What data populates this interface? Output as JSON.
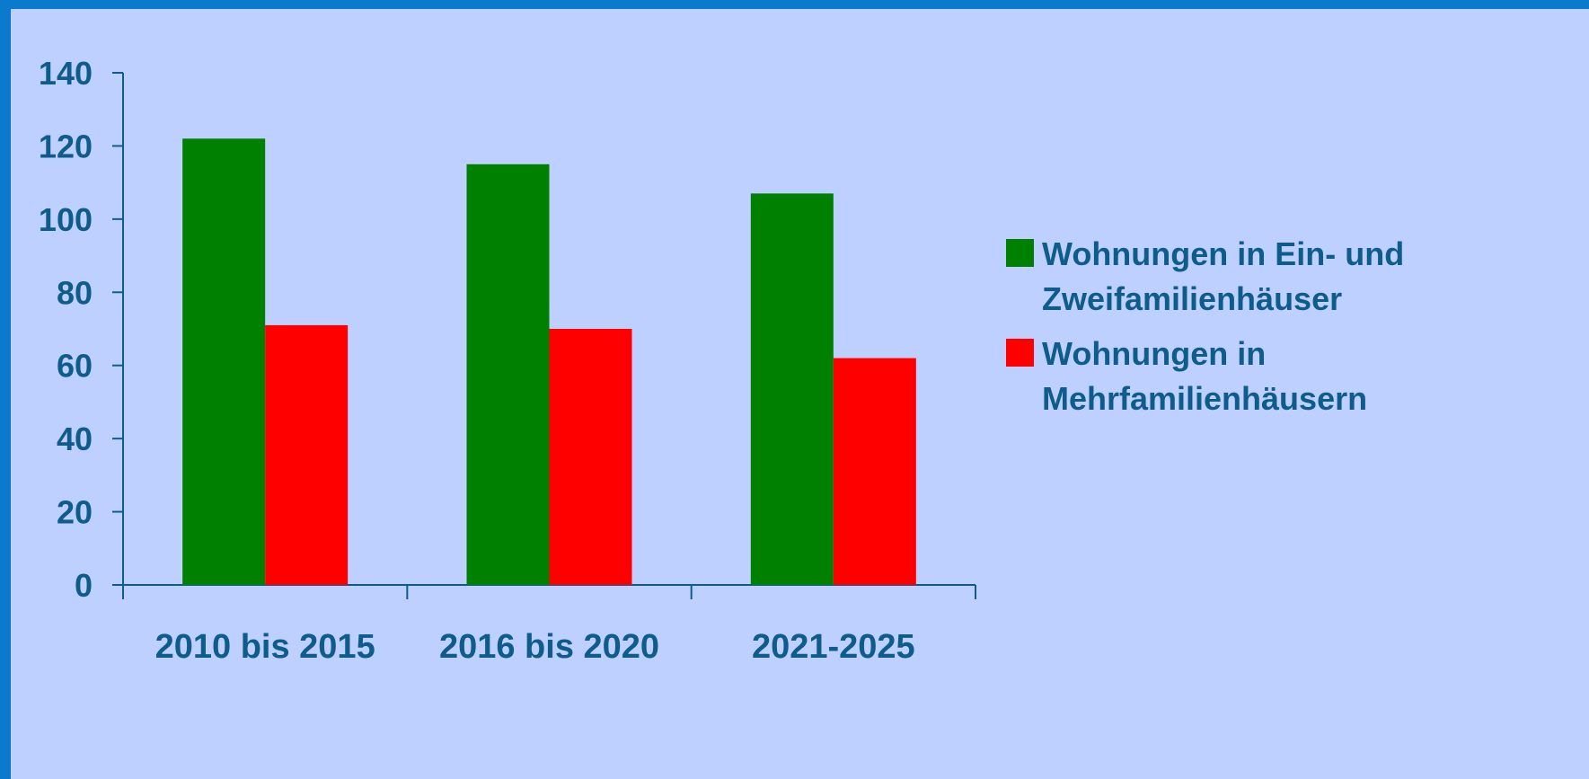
{
  "colors": {
    "background": "#BED0FF",
    "border": "#0A7ACC",
    "text": "#0E5C8C",
    "axis": "#0E5C8C"
  },
  "chart_data": {
    "type": "bar",
    "categories": [
      "2010 bis 2015",
      "2016 bis 2020",
      "2021-2025"
    ],
    "series": [
      {
        "name": "Wohnungen in Ein- und Zweifamilienhäuser",
        "name_lines": [
          "Wohnungen in Ein- und",
          "Zweifamilienhäuser"
        ],
        "color": "#008000",
        "values": [
          122,
          115,
          107
        ]
      },
      {
        "name": "Wohnungen in Mehrfamilienhäusern",
        "name_lines": [
          "Wohnungen in",
          "Mehrfamilienhäusern"
        ],
        "color": "#FF0000",
        "values": [
          71,
          70,
          62
        ]
      }
    ],
    "ylim": [
      0,
      140
    ],
    "yticks": [
      0,
      20,
      40,
      60,
      80,
      100,
      120,
      140
    ],
    "title": "",
    "xlabel": "",
    "ylabel": "",
    "grid": false,
    "legend_position": "right"
  }
}
